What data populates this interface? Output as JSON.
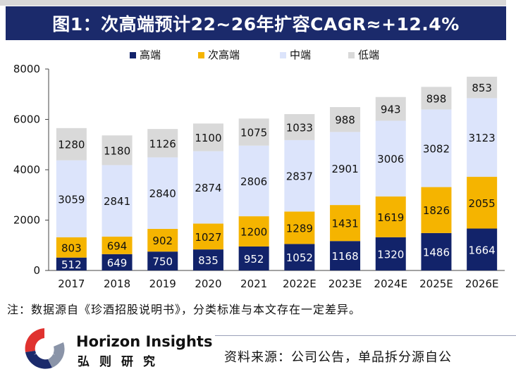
{
  "header": {
    "title": "图1：次高端预计22~26年扩容CAGR≈+12.4%"
  },
  "footer": {
    "note": "注：数据源自《珍酒招股说明书》，分类标准与本文存在一定差异。",
    "brand_en": "Horizon Insights",
    "brand_cn": "弘则研究",
    "source": "资料来源：公司公告，单品拆分源自公"
  },
  "chart_data": {
    "type": "bar",
    "stacked": true,
    "categories": [
      "2017",
      "2018",
      "2019",
      "2020",
      "2021",
      "2022E",
      "2023E",
      "2024E",
      "2025E",
      "2026E"
    ],
    "series": [
      {
        "name": "高端",
        "color": "#12236a",
        "label_color": "#ffffff",
        "values": [
          512,
          649,
          750,
          835,
          952,
          1052,
          1168,
          1320,
          1486,
          1664
        ]
      },
      {
        "name": "次高端",
        "color": "#f5b400",
        "label_color": "#111111",
        "values": [
          803,
          694,
          902,
          1027,
          1200,
          1289,
          1431,
          1619,
          1826,
          2055
        ]
      },
      {
        "name": "中端",
        "color": "#dce4fb",
        "label_color": "#111111",
        "values": [
          3059,
          2841,
          2840,
          2874,
          2806,
          2837,
          2901,
          3006,
          3082,
          3123
        ]
      },
      {
        "name": "低端",
        "color": "#d9d9d9",
        "label_color": "#111111",
        "values": [
          1280,
          1180,
          1126,
          1100,
          1075,
          1033,
          988,
          943,
          898,
          853
        ]
      }
    ],
    "ylim": [
      0,
      8000
    ],
    "yticks": [
      0,
      2000,
      4000,
      6000,
      8000
    ],
    "grid": false,
    "legend_position": "top"
  }
}
